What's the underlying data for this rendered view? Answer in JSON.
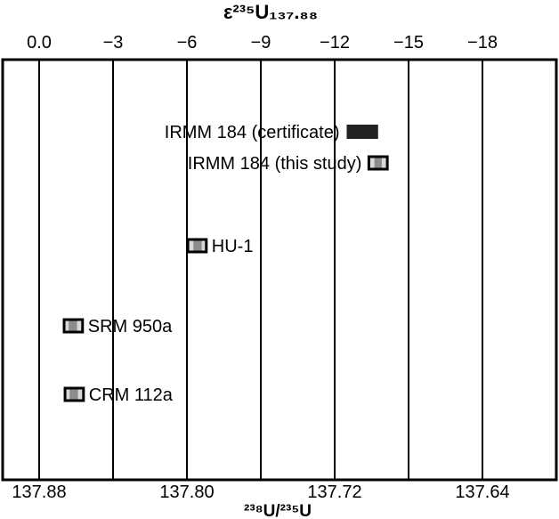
{
  "chart_data": {
    "type": "range-bar",
    "top_axis": {
      "label": "ε²³⁵U₁₃₇.₈₈",
      "ticks": [
        0.0,
        -3,
        -6,
        -9,
        -12,
        -15,
        -18
      ],
      "tick_labels": [
        "0.0",
        "−3",
        "−6",
        "−9",
        "−12",
        "−15",
        "−18"
      ]
    },
    "bottom_axis": {
      "label": "²³⁸U/²³⁵U",
      "ticks": [
        137.88,
        137.8,
        137.72,
        137.64
      ],
      "tick_labels": [
        "137.88",
        "137.80",
        "137.72",
        "137.64"
      ],
      "xlim": [
        137.9,
        137.6
      ]
    },
    "gridlines_x": [
      137.88,
      137.84,
      137.8,
      137.76,
      137.72,
      137.68,
      137.64
    ],
    "grid": "vertical",
    "series": [
      {
        "label": "IRMM 184 (certificate)",
        "label_side": "left",
        "style": "solid",
        "outer": [
          137.7135,
          137.6965
        ]
      },
      {
        "label": "IRMM 184 (this study)",
        "label_side": "left",
        "style": "boxed",
        "outer": [
          137.7015,
          137.6915
        ],
        "inner": [
          137.6985,
          137.6945
        ]
      },
      {
        "label": "HU-1",
        "label_side": "right",
        "style": "boxed",
        "outer": [
          137.7995,
          137.7895
        ],
        "inner": [
          137.7965,
          137.792
        ]
      },
      {
        "label": "SRM 950a",
        "label_side": "right",
        "style": "boxed",
        "outer": [
          137.8665,
          137.8565
        ],
        "inner": [
          137.864,
          137.8595
        ]
      },
      {
        "label": "CRM 112a",
        "label_side": "right",
        "style": "boxed",
        "outer": [
          137.866,
          137.856
        ],
        "inner": [
          137.8635,
          137.859
        ]
      }
    ],
    "colors": {
      "solid": "#222222",
      "outer_fill": "#d9d9d9",
      "inner_fill": "#8c8c8c",
      "frame": "#000000"
    }
  }
}
